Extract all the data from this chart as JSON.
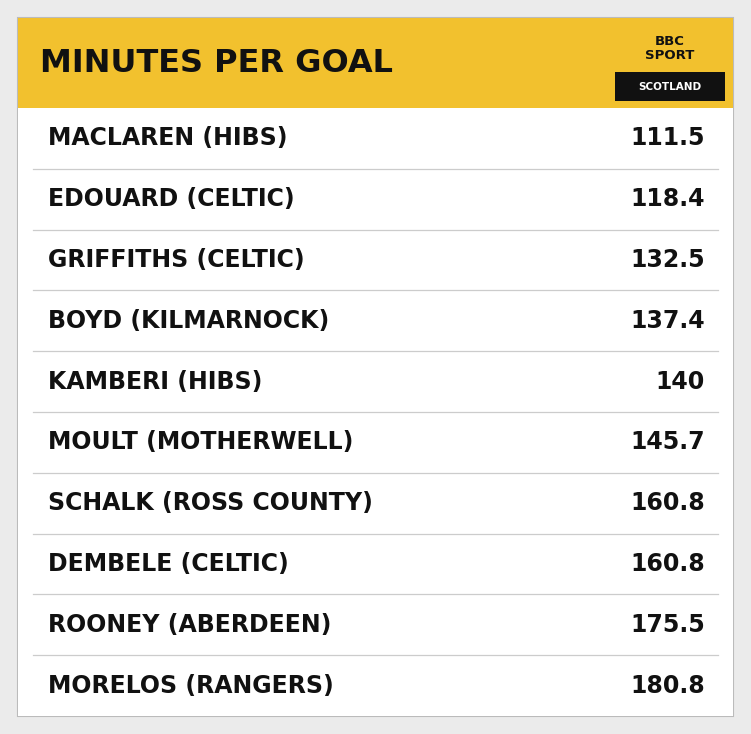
{
  "title": "MINUTES PER GOAL",
  "title_bg_color": "#F2C12E",
  "title_text_color": "#111111",
  "body_bg_color": "#ebebeb",
  "row_bg_color": "#ffffff",
  "rows": [
    {
      "name": "MACLAREN (HIBS)",
      "value": "111.5"
    },
    {
      "name": "EDOUARD (CELTIC)",
      "value": "118.4"
    },
    {
      "name": "GRIFFITHS (CELTIC)",
      "value": "132.5"
    },
    {
      "name": "BOYD (KILMARNOCK)",
      "value": "137.4"
    },
    {
      "name": "KAMBERI (HIBS)",
      "value": "140"
    },
    {
      "name": "MOULT (MOTHERWELL)",
      "value": "145.7"
    },
    {
      "name": "SCHALK (ROSS COUNTY)",
      "value": "160.8"
    },
    {
      "name": "DEMBELE (CELTIC)",
      "value": "160.8"
    },
    {
      "name": "ROONEY (ABERDEEN)",
      "value": "175.5"
    },
    {
      "name": "MORELOS (RANGERS)",
      "value": "180.8"
    }
  ],
  "row_divider_color": "#cccccc",
  "text_color": "#111111",
  "bbc_logo_bg": "#F2C12E",
  "bbc_logo_text": "#111111",
  "scotland_bg": "#111111",
  "scotland_text": "#ffffff",
  "fig_width": 7.51,
  "fig_height": 7.34,
  "dpi": 100
}
